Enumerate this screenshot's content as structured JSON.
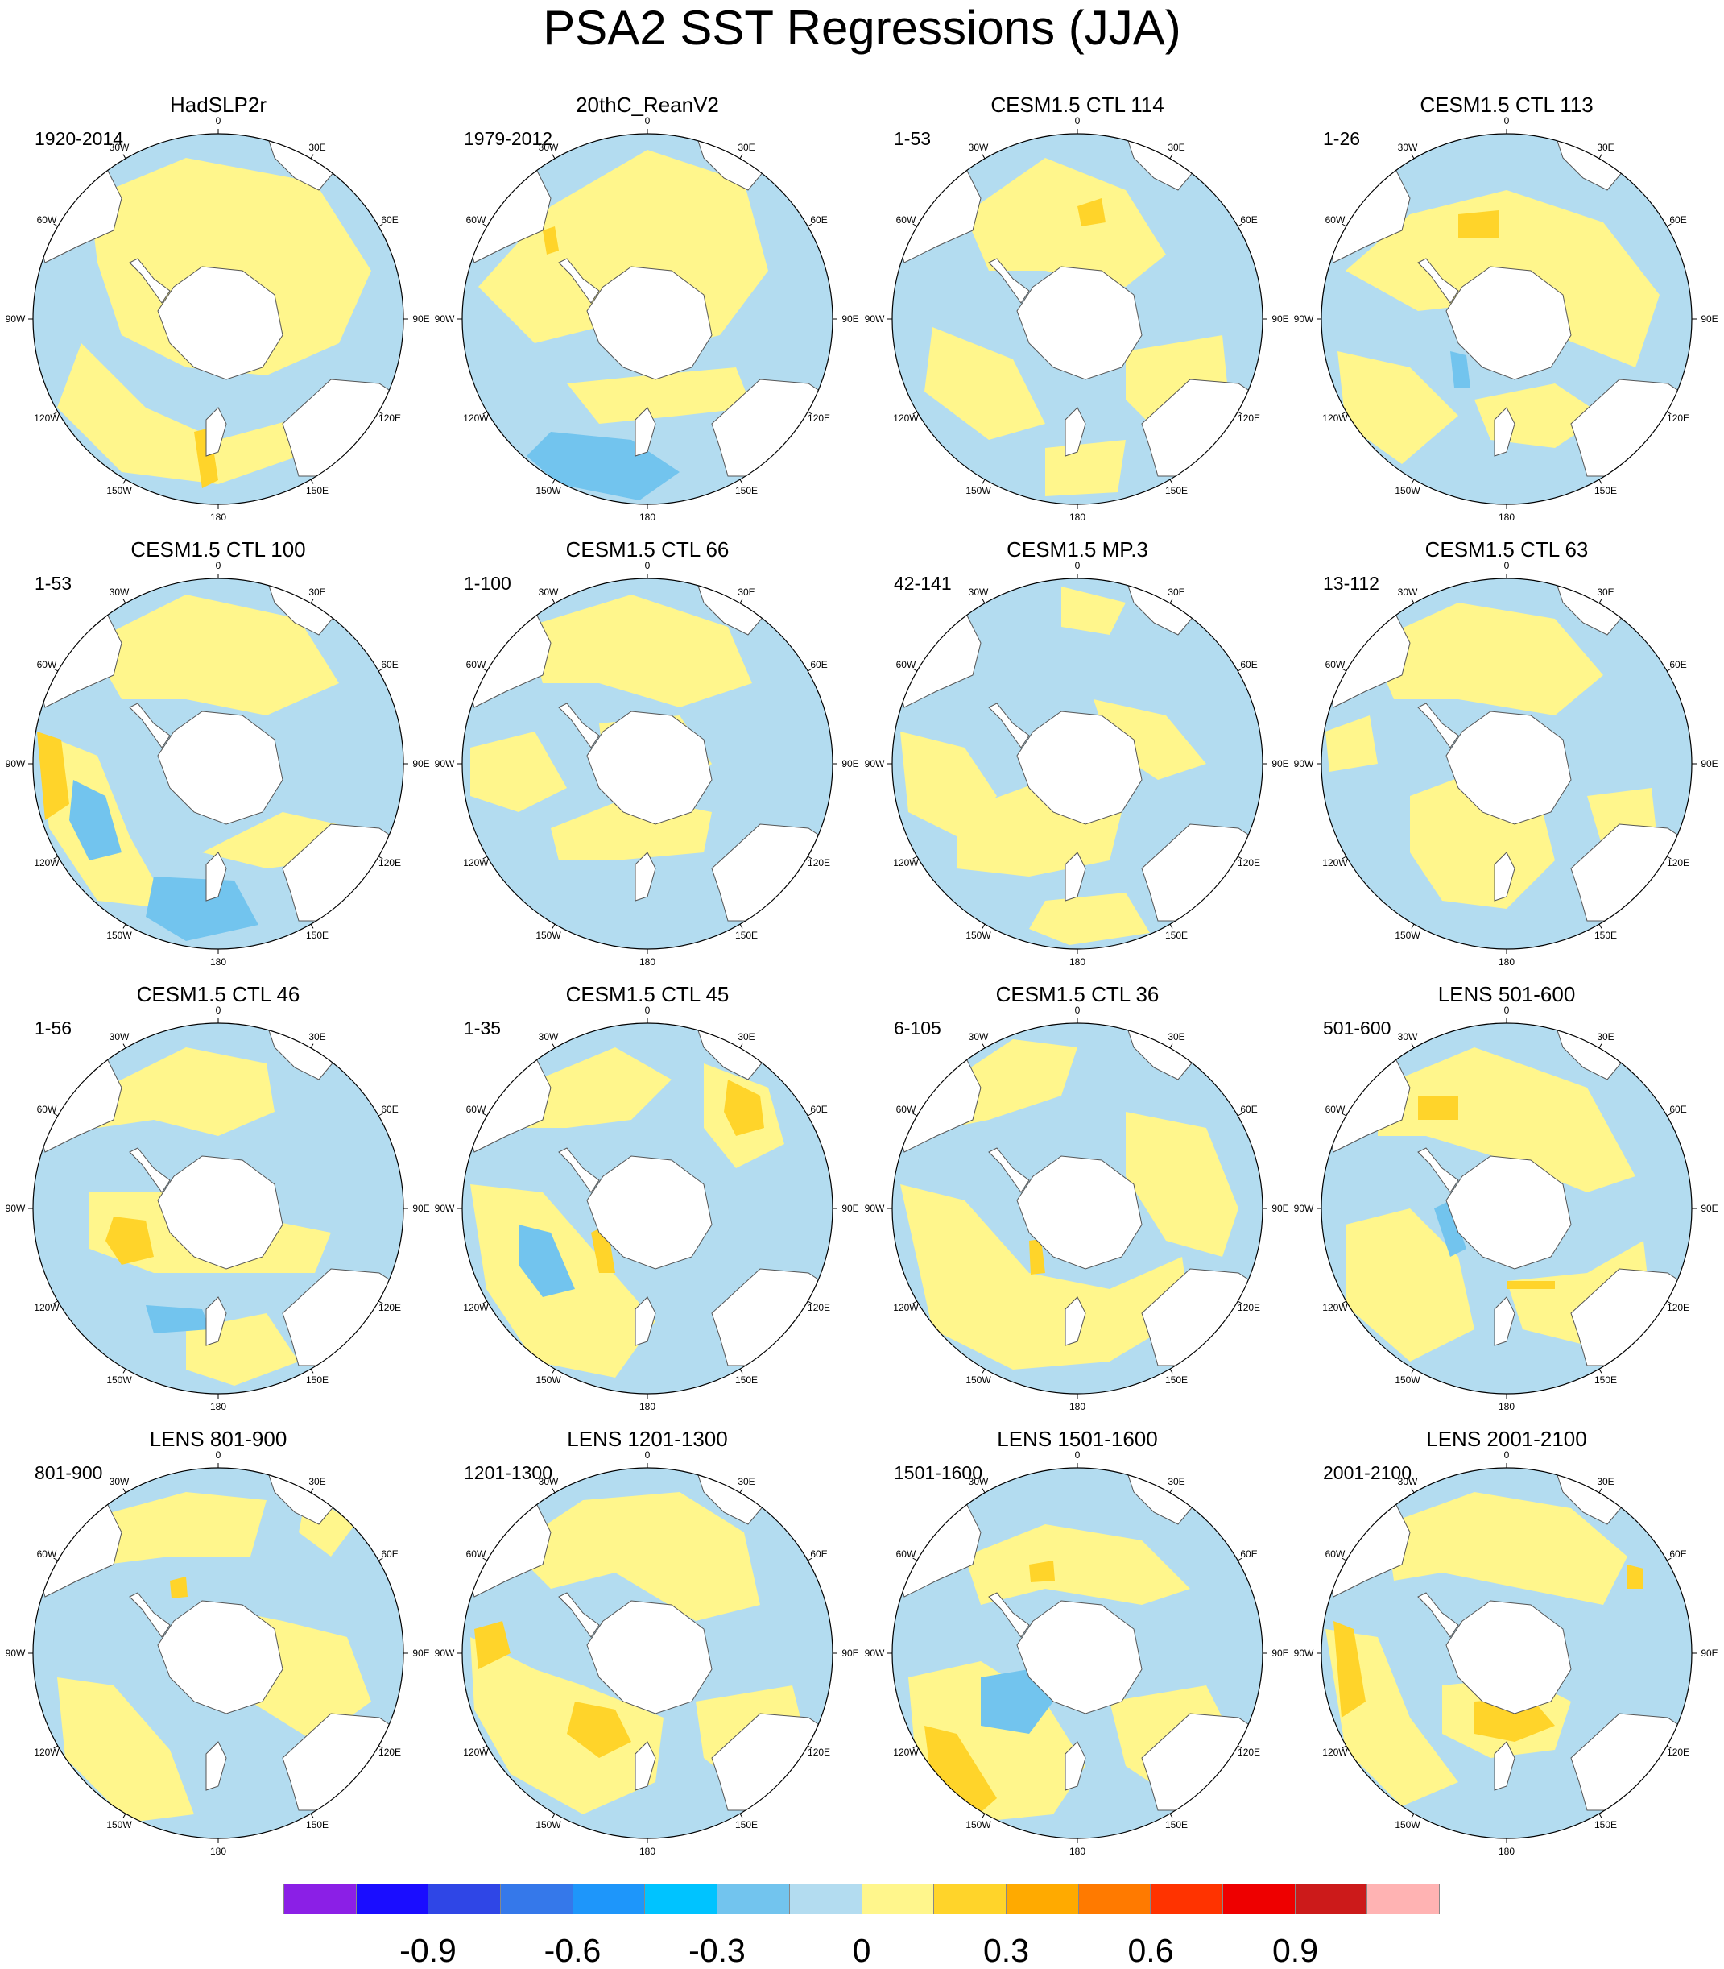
{
  "figure": {
    "title": "PSA2 SST Regressions (JJA)"
  },
  "longitude_labels": [
    "0",
    "30E",
    "60E",
    "90E",
    "120E",
    "150E",
    "180",
    "150W",
    "120W",
    "90W",
    "60W",
    "30W"
  ],
  "panels": [
    {
      "title": "HadSLP2r",
      "period": "1920-2014"
    },
    {
      "title": "20thC_ReanV2",
      "period": "1979-2012"
    },
    {
      "title": "CESM1.5 CTL 114",
      "period": "1-53"
    },
    {
      "title": "CESM1.5 CTL 113",
      "period": "1-26"
    },
    {
      "title": "CESM1.5 CTL 100",
      "period": "1-53"
    },
    {
      "title": "CESM1.5 CTL 66",
      "period": "1-100"
    },
    {
      "title": "CESM1.5 MP.3",
      "period": "42-141"
    },
    {
      "title": "CESM1.5 CTL 63",
      "period": "13-112"
    },
    {
      "title": "CESM1.5 CTL 46",
      "period": "1-56"
    },
    {
      "title": "CESM1.5 CTL 45",
      "period": "1-35"
    },
    {
      "title": "CESM1.5 CTL 36",
      "period": "6-105"
    },
    {
      "title": "LENS 501-600",
      "period": "501-600"
    },
    {
      "title": "LENS 801-900",
      "period": "801-900"
    },
    {
      "title": "LENS 1201-1300",
      "period": "1201-1300"
    },
    {
      "title": "LENS 1501-1600",
      "period": "1501-1600"
    },
    {
      "title": "LENS 2001-2100",
      "period": "2001-2100"
    }
  ],
  "colorbar": {
    "colors": [
      "#8b1fe6",
      "#1a0dff",
      "#2f46e6",
      "#3578ea",
      "#1e96fa",
      "#00c3ff",
      "#72c4ee",
      "#b3dcf0",
      "#fff68c",
      "#ffd42a",
      "#ffaa00",
      "#ff7a00",
      "#ff3300",
      "#ee0000",
      "#cc1a1a",
      "#ffb3b3"
    ],
    "labels": [
      "-0.9",
      "-0.6",
      "-0.3",
      "0",
      "0.3",
      "0.6",
      "0.9"
    ]
  },
  "palette": {
    "ocean_base": "#b3dcf0",
    "positive_weak": "#fff68c",
    "positive_mod": "#ffd42a",
    "positive_strong": "#ffaa00",
    "negative_mod": "#72c4ee",
    "land": "#ffffff"
  }
}
